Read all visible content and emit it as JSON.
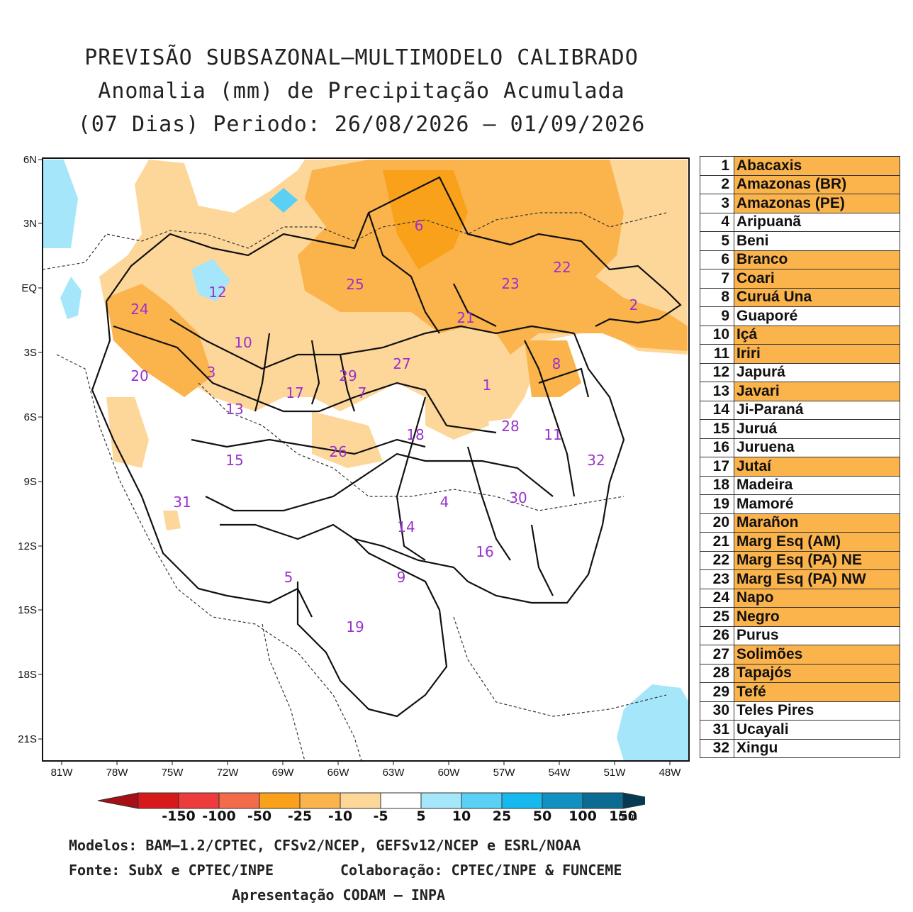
{
  "title": {
    "line1": "PREVISÃO SUBSAZONAL–MULTIMODELO CALIBRADO",
    "line2": "Anomalia (mm) de Precipitação Acumulada",
    "line3": "(07 Dias) Periodo: 26/08/2026 – 01/09/2026"
  },
  "map": {
    "lat_ticks": [
      "6N",
      "3N",
      "EQ",
      "3S",
      "6S",
      "9S",
      "12S",
      "15S",
      "18S",
      "21S"
    ],
    "lon_ticks": [
      "81W",
      "78W",
      "75W",
      "72W",
      "69W",
      "66W",
      "63W",
      "60W",
      "57W",
      "54W",
      "51W",
      "48W"
    ],
    "basin_labels": [
      {
        "n": "1"
      },
      {
        "n": "2"
      },
      {
        "n": "3"
      },
      {
        "n": "4"
      },
      {
        "n": "5"
      },
      {
        "n": "6"
      },
      {
        "n": "7"
      },
      {
        "n": "8"
      },
      {
        "n": "9"
      },
      {
        "n": "10"
      },
      {
        "n": "11"
      },
      {
        "n": "12"
      },
      {
        "n": "13"
      },
      {
        "n": "14"
      },
      {
        "n": "15"
      },
      {
        "n": "16"
      },
      {
        "n": "17"
      },
      {
        "n": "18"
      },
      {
        "n": "19"
      },
      {
        "n": "20"
      },
      {
        "n": "21"
      },
      {
        "n": "22"
      },
      {
        "n": "23"
      },
      {
        "n": "24"
      },
      {
        "n": "25"
      },
      {
        "n": "26"
      },
      {
        "n": "27"
      },
      {
        "n": "28"
      },
      {
        "n": "29"
      },
      {
        "n": "30"
      },
      {
        "n": "31"
      },
      {
        "n": "32"
      }
    ]
  },
  "legend": [
    {
      "n": "1",
      "name": "Abacaxis",
      "hl": true
    },
    {
      "n": "2",
      "name": "Amazonas (BR)",
      "hl": true
    },
    {
      "n": "3",
      "name": "Amazonas (PE)",
      "hl": true
    },
    {
      "n": "4",
      "name": "Aripuanã",
      "hl": false
    },
    {
      "n": "5",
      "name": "Beni",
      "hl": false
    },
    {
      "n": "6",
      "name": "Branco",
      "hl": true
    },
    {
      "n": "7",
      "name": "Coari",
      "hl": true
    },
    {
      "n": "8",
      "name": "Curuá Una",
      "hl": true
    },
    {
      "n": "9",
      "name": "Guaporé",
      "hl": false
    },
    {
      "n": "10",
      "name": "Içá",
      "hl": true
    },
    {
      "n": "11",
      "name": "Iriri",
      "hl": true
    },
    {
      "n": "12",
      "name": "Japurá",
      "hl": false
    },
    {
      "n": "13",
      "name": "Javari",
      "hl": true
    },
    {
      "n": "14",
      "name": "Ji-Paraná",
      "hl": false
    },
    {
      "n": "15",
      "name": "Juruá",
      "hl": false
    },
    {
      "n": "16",
      "name": "Juruena",
      "hl": false
    },
    {
      "n": "17",
      "name": "Jutaí",
      "hl": true
    },
    {
      "n": "18",
      "name": "Madeira",
      "hl": false
    },
    {
      "n": "19",
      "name": "Mamoré",
      "hl": false
    },
    {
      "n": "20",
      "name": "Marañon",
      "hl": true
    },
    {
      "n": "21",
      "name": "Marg Esq (AM)",
      "hl": true
    },
    {
      "n": "22",
      "name": "Marg Esq (PA) NE",
      "hl": true
    },
    {
      "n": "23",
      "name": "Marg Esq (PA) NW",
      "hl": true
    },
    {
      "n": "24",
      "name": "Napo",
      "hl": true
    },
    {
      "n": "25",
      "name": "Negro",
      "hl": true
    },
    {
      "n": "26",
      "name": "Purus",
      "hl": false
    },
    {
      "n": "27",
      "name": "Solimões",
      "hl": true
    },
    {
      "n": "28",
      "name": "Tapajós",
      "hl": true
    },
    {
      "n": "29",
      "name": "Tefé",
      "hl": true
    },
    {
      "n": "30",
      "name": "Teles Pires",
      "hl": false
    },
    {
      "n": "31",
      "name": "Ucayali",
      "hl": false
    },
    {
      "n": "32",
      "name": "Xingu",
      "hl": false
    }
  ],
  "colorbar": {
    "labels": [
      "-150",
      "-100",
      "-50",
      "-25",
      "-10",
      "-5",
      "5",
      "10",
      "25",
      "50",
      "100",
      "150"
    ],
    "unit": "mm",
    "colors": [
      "#d7191c",
      "#ee3b3b",
      "#f26b4b",
      "#f9a11b",
      "#fbb34c",
      "#fdd79a",
      "#ffffff",
      "#a6e6fb",
      "#5ad0f5",
      "#16b8ee",
      "#1190c2",
      "#0b6b93",
      "#074e6b"
    ]
  },
  "colors": {
    "highlight": "#fbb34c",
    "text_label": "#9933cc"
  },
  "footer": {
    "models": "Modelos: BAM–1.2/CPTEC, CFSv2/NCEP, GEFSv12/NCEP e ESRL/NOAA",
    "source": "Fonte: SubX e CPTEC/INPE",
    "collab": "Colaboração: CPTEC/INPE & FUNCEME",
    "presentation": "Apresentação CODAM – INPA"
  }
}
